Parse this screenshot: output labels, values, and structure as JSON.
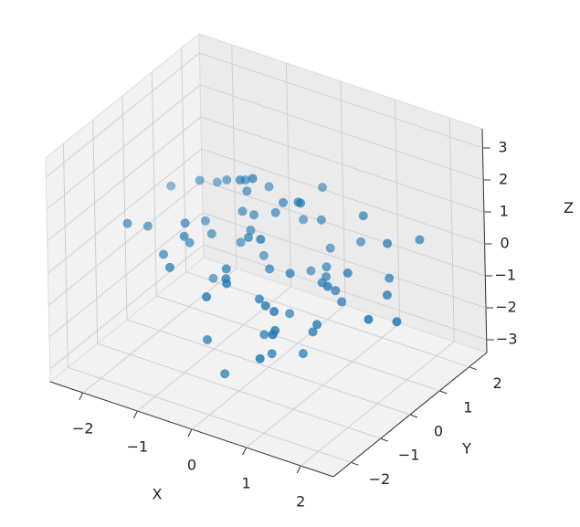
{
  "chart_data": {
    "type": "scatter3d",
    "color": "#1f77b4",
    "xlabel": "X",
    "ylabel": "Y",
    "zlabel": "Z",
    "xlim": [
      -2.6,
      2.6
    ],
    "ylim": [
      -2.6,
      2.6
    ],
    "zlim": [
      -3.4,
      3.6
    ],
    "xticks": [
      {
        "value": -2,
        "label": "−2"
      },
      {
        "value": -1,
        "label": "−1"
      },
      0,
      1,
      2
    ],
    "yticks": [
      {
        "value": -2,
        "label": "−2"
      },
      {
        "value": -1,
        "label": "−1"
      },
      0,
      1,
      2
    ],
    "zticks": [
      {
        "value": -3,
        "label": "−3"
      },
      {
        "value": -2,
        "label": "−2"
      },
      {
        "value": -1,
        "label": "−1"
      },
      0,
      1,
      2,
      3
    ],
    "x": [
      -0.5,
      0.3,
      1.2,
      -1.1,
      0.8,
      -0.2,
      0.1,
      -1.6,
      2.2,
      -0.9,
      0.6,
      1.5,
      -0.3,
      0.0,
      -2.4,
      0.9,
      -0.7,
      1.1,
      0.4,
      -1.3,
      0.2,
      -0.4,
      1.8,
      -0.8,
      0.7,
      -0.1,
      1.3,
      -1.9,
      0.5,
      -0.6,
      0.1,
      2.0,
      -1.2,
      0.3,
      -0.2,
      1.0,
      -0.9,
      0.6,
      -1.5,
      0.8,
      0.0,
      -0.3,
      1.6,
      -0.7,
      0.4,
      -1.0,
      2.5,
      0.2,
      -0.5,
      1.1,
      -1.4,
      0.7,
      -0.1,
      0.9,
      -0.8,
      0.3,
      1.4,
      -2.0,
      0.5,
      -0.4,
      1.2,
      -0.6,
      0.1,
      -1.1,
      0.8,
      1.9,
      -0.2,
      0.6,
      -1.7,
      0.0
    ],
    "y": [
      0.4,
      -0.8,
      1.1,
      0.2,
      -1.5,
      0.7,
      -0.3,
      1.3,
      -0.6,
      -1.1,
      0.9,
      0.0,
      1.8,
      -0.4,
      1.2,
      -1.9,
      0.5,
      0.3,
      -0.9,
      -0.2,
      1.5,
      -1.3,
      0.8,
      0.6,
      -0.1,
      2.1,
      -0.7,
      -0.5,
      0.2,
      1.0,
      -2.2,
      0.4,
      0.9,
      1.6,
      -1.0,
      -0.3,
      -1.6,
      0.1,
      0.7,
      -1.2,
      0.6,
      -0.8,
      1.2,
      1.4,
      -0.6,
      0.0,
      -0.2,
      -1.7,
      0.3,
      0.5,
      -0.9,
      1.9,
      -0.4,
      -1.4,
      0.8,
      0.2,
      -0.5,
      -1.0,
      1.1,
      -0.1,
      -2.0,
      0.7,
      1.3,
      -0.7,
      0.4,
      1.7,
      -1.1,
      -0.3,
      0.9,
      0.1
    ],
    "z": [
      0.3,
      -0.5,
      1.2,
      -1.4,
      0.1,
      0.8,
      -2.1,
      0.5,
      -0.2,
      1.0,
      -0.9,
      0.4,
      -0.3,
      2.8,
      0.0,
      -1.2,
      0.7,
      -0.6,
      1.5,
      -0.1,
      0.2,
      -1.8,
      0.9,
      -0.4,
      -2.5,
      0.6,
      -0.8,
      0.3,
      1.9,
      -1.0,
      0.5,
      -0.3,
      1.1,
      -0.7,
      0.0,
      -1.5,
      0.4,
      2.0,
      -0.2,
      -0.9,
      1.3,
      0.1,
      -0.6,
      0.8,
      -2.3,
      0.2,
      -0.4,
      0.6,
      1.6,
      -1.1,
      0.0,
      -0.5,
      0.9,
      -0.1,
      1.4,
      -1.7,
      0.3,
      0.7,
      -0.8,
      2.3,
      -0.2,
      0.5,
      -1.3,
      1.0,
      -0.6,
      0.4,
      -2.9,
      0.1,
      0.8,
      -0.4
    ]
  }
}
